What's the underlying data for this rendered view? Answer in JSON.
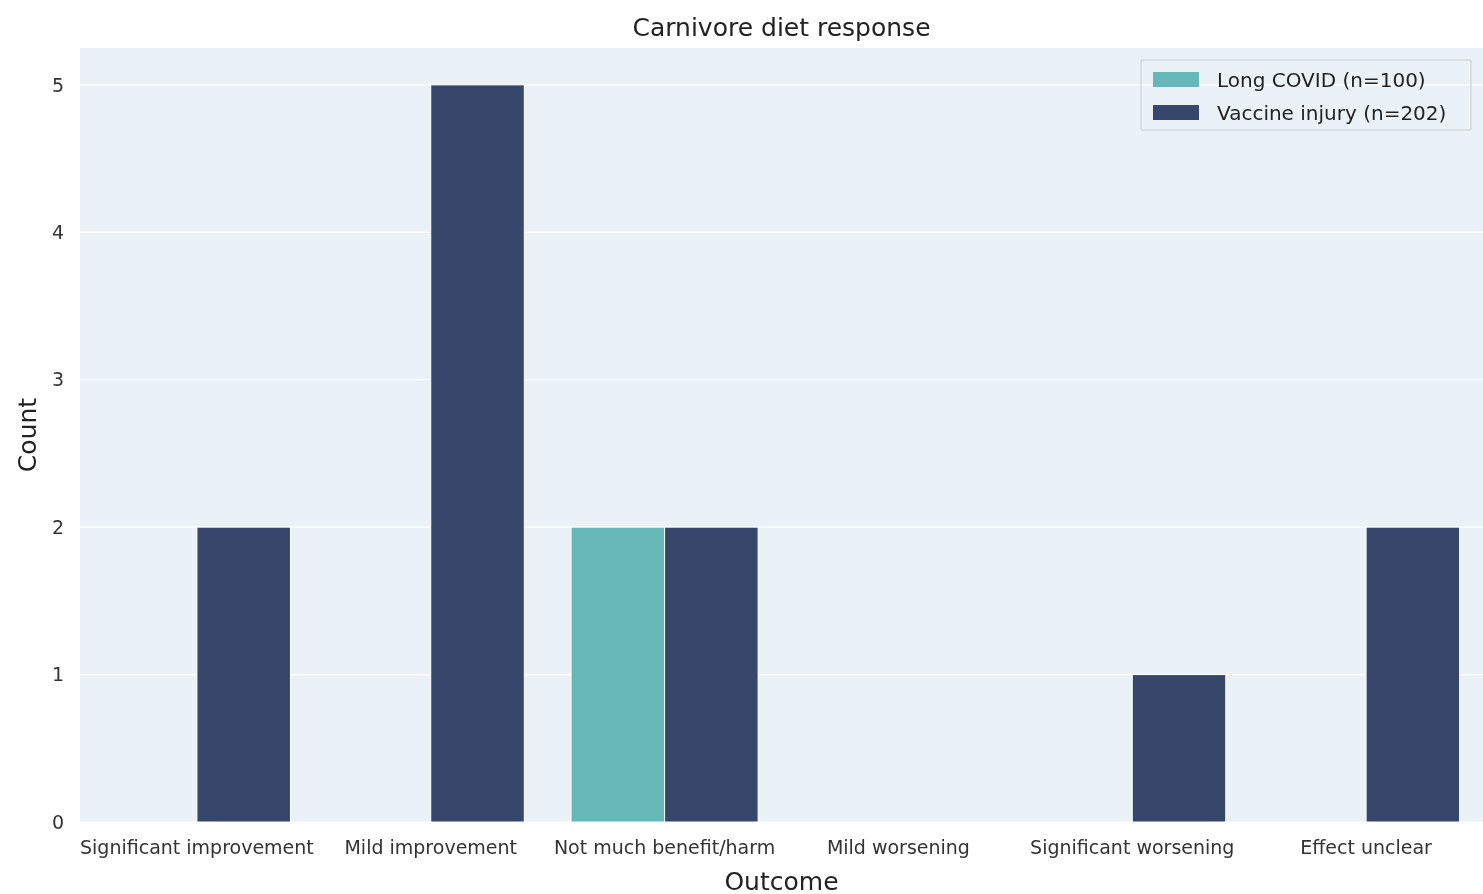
{
  "chart_data": {
    "type": "bar",
    "title": "Carnivore diet response",
    "xlabel": "Outcome",
    "ylabel": "Count",
    "categories": [
      "Significant improvement",
      "Mild improvement",
      "Not much benefit/harm",
      "Mild worsening",
      "Significant worsening",
      "Effect unclear"
    ],
    "series": [
      {
        "name": "Long COVID (n=100)",
        "color": "#66b8b8",
        "values": [
          0,
          0,
          2,
          0,
          0,
          0
        ]
      },
      {
        "name": "Vaccine injury (n=202)",
        "color": "#37466b",
        "values": [
          2,
          5,
          2,
          0,
          1,
          2
        ]
      }
    ],
    "ylim": [
      0,
      5.25
    ],
    "yticks": [
      0,
      1,
      2,
      3,
      4,
      5
    ],
    "grid": "y",
    "legend": "top right"
  }
}
